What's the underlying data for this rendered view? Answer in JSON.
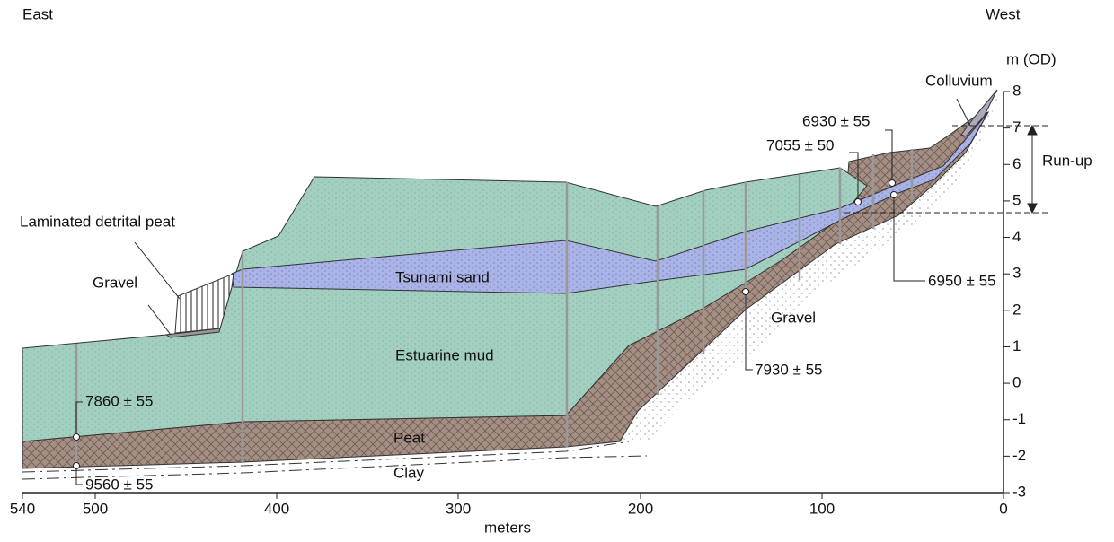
{
  "header": {
    "east": "East",
    "west": "West"
  },
  "axes": {
    "y_title": "m (OD)",
    "x_title": "meters",
    "x_ticks": [
      "540",
      "500",
      "400",
      "300",
      "200",
      "100",
      "0"
    ],
    "y_ticks": [
      "8",
      "7",
      "6",
      "5",
      "4",
      "3",
      "2",
      "1",
      "0",
      "-1",
      "-2",
      "-3"
    ]
  },
  "units": {
    "tsunami_sand": "Tsunami sand",
    "estuarine_mud": "Estuarine mud",
    "peat": "Peat",
    "clay": "Clay",
    "gravel_left": "Gravel",
    "gravel_right": "Gravel",
    "laminated_peat": "Laminated detrital peat",
    "colluvium": "Colluvium",
    "run_up": "Run-up"
  },
  "dates": {
    "d6930": "6930 ± 55",
    "d7055": "7055 ± 50",
    "d6950": "6950 ± 55",
    "d7930": "7930 ± 55",
    "d7860": "7860 ± 55",
    "d9560": "9560 ± 55"
  }
}
